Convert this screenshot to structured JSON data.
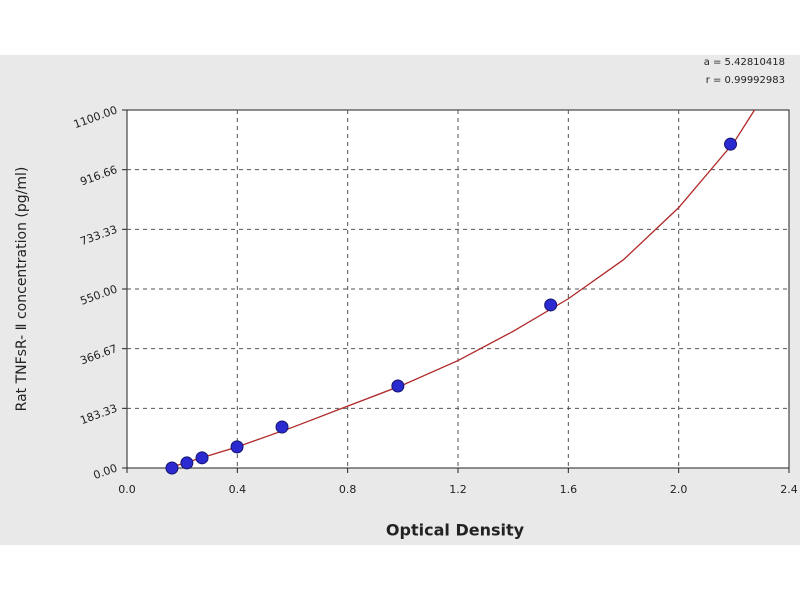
{
  "chart_data": {
    "type": "scatter",
    "x_label": "Optical Density",
    "y_label": "Rat TNFsR- Ⅱ concentration (pg/ml)",
    "annotations": [
      "a = 5.42810418",
      "r = 0.99992983"
    ],
    "x": [
      0.163,
      0.217,
      0.272,
      0.399,
      0.562,
      0.982,
      1.536,
      2.188
    ],
    "values": [
      0,
      15.6,
      31.3,
      65,
      126,
      252,
      501,
      995
    ],
    "color": "#2a2ad0",
    "fit": {
      "color": "#b02828",
      "x": [
        0.15,
        0.4,
        0.6,
        0.8,
        1.0,
        1.2,
        1.4,
        1.6,
        1.8,
        2.0,
        2.2,
        2.275
      ],
      "values": [
        0,
        65,
        125,
        190,
        255,
        330,
        420,
        520,
        640,
        800,
        1000,
        1100
      ]
    },
    "xlim": [
      0,
      2.4
    ],
    "xticks": [
      {
        "value": 0,
        "label": "0.0"
      },
      0.4,
      0.8,
      1.2,
      1.6,
      {
        "value": 2,
        "label": "2.0"
      },
      2.4
    ],
    "ylim": [
      0,
      1100
    ],
    "yticks": [
      {
        "value": 0,
        "label": "0.00"
      },
      183.33,
      366.67,
      {
        "value": 550,
        "label": "550.00"
      },
      733.33,
      916.66,
      {
        "value": 1100,
        "label": "1100.00"
      }
    ],
    "grid": true
  }
}
